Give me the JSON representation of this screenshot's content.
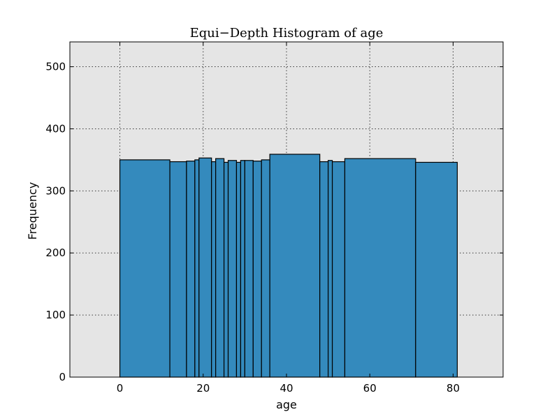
{
  "chart_data": {
    "type": "bar",
    "title": "Equi−Depth Histogram of age",
    "xlabel": "age",
    "ylabel": "Frequency",
    "xlim": [
      -12,
      92
    ],
    "ylim": [
      0,
      540
    ],
    "xticks": [
      0,
      20,
      40,
      60,
      80
    ],
    "yticks": [
      0,
      100,
      200,
      300,
      400,
      500
    ],
    "grid": true,
    "bar_color": "#348ABD",
    "background_color": "#E5E5E5",
    "bins": [
      {
        "x0": 0,
        "x1": 12,
        "value": 350
      },
      {
        "x0": 12,
        "x1": 16,
        "value": 347
      },
      {
        "x0": 16,
        "x1": 18,
        "value": 348
      },
      {
        "x0": 18,
        "x1": 19,
        "value": 350
      },
      {
        "x0": 19,
        "x1": 22,
        "value": 353
      },
      {
        "x0": 22,
        "x1": 23,
        "value": 347
      },
      {
        "x0": 23,
        "x1": 25,
        "value": 352
      },
      {
        "x0": 25,
        "x1": 26,
        "value": 346
      },
      {
        "x0": 26,
        "x1": 28,
        "value": 349
      },
      {
        "x0": 28,
        "x1": 29,
        "value": 346
      },
      {
        "x0": 29,
        "x1": 30,
        "value": 349
      },
      {
        "x0": 30,
        "x1": 32,
        "value": 349
      },
      {
        "x0": 32,
        "x1": 34,
        "value": 348
      },
      {
        "x0": 34,
        "x1": 36,
        "value": 350
      },
      {
        "x0": 36,
        "x1": 48,
        "value": 359
      },
      {
        "x0": 48,
        "x1": 50,
        "value": 347
      },
      {
        "x0": 50,
        "x1": 51,
        "value": 349
      },
      {
        "x0": 51,
        "x1": 54,
        "value": 347
      },
      {
        "x0": 54,
        "x1": 71,
        "value": 352
      },
      {
        "x0": 71,
        "x1": 81,
        "value": 346
      }
    ]
  }
}
